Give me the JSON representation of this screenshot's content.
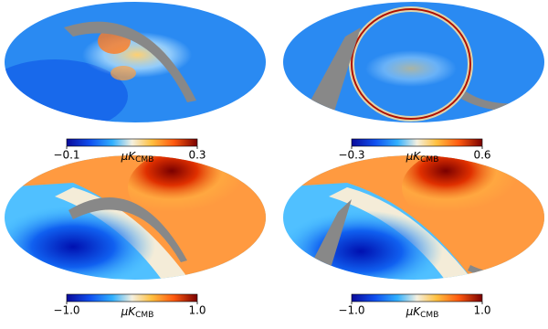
{
  "panels": [
    {
      "unit": "μK",
      "unit_sub": "CMB",
      "ticks": [
        {
          "value": -0.1,
          "label": "−0.1"
        },
        {
          "value": 0.3,
          "label": "0.3"
        }
      ]
    },
    {
      "unit": "μK",
      "unit_sub": "CMB",
      "ticks": [
        {
          "value": -0.3,
          "label": "−0.3"
        },
        {
          "value": 0.6,
          "label": "0.6"
        }
      ]
    },
    {
      "unit": "μK",
      "unit_sub": "CMB",
      "ticks": [
        {
          "value": -1.0,
          "label": "−1.0"
        },
        {
          "value": 1.0,
          "label": "1.0"
        }
      ]
    },
    {
      "unit": "μK",
      "unit_sub": "CMB",
      "ticks": [
        {
          "value": -1.0,
          "label": "−1.0"
        },
        {
          "value": 1.0,
          "label": "1.0"
        }
      ]
    }
  ]
}
